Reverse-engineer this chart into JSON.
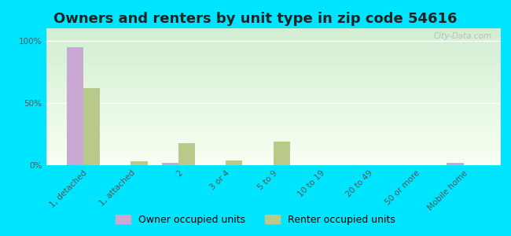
{
  "title": "Owners and renters by unit type in zip code 54616",
  "categories": [
    "1, detached",
    "1, attached",
    "2",
    "3 or 4",
    "5 to 9",
    "10 to 19",
    "20 to 49",
    "50 or more",
    "Mobile home"
  ],
  "owner_values": [
    95,
    0,
    2,
    0,
    0,
    0,
    0,
    0,
    2
  ],
  "renter_values": [
    62,
    3,
    18,
    4,
    19,
    0,
    0,
    0,
    0
  ],
  "owner_color": "#c9a8d4",
  "renter_color": "#b8c98a",
  "outer_bg": "#00e5ff",
  "ylabel_ticks": [
    "0%",
    "50%",
    "100%"
  ],
  "ytick_vals": [
    0,
    50,
    100
  ],
  "ylim": [
    0,
    110
  ],
  "bar_width": 0.35,
  "legend_owner": "Owner occupied units",
  "legend_renter": "Renter occupied units",
  "title_fontsize": 13,
  "tick_fontsize": 7.5,
  "legend_fontsize": 9
}
